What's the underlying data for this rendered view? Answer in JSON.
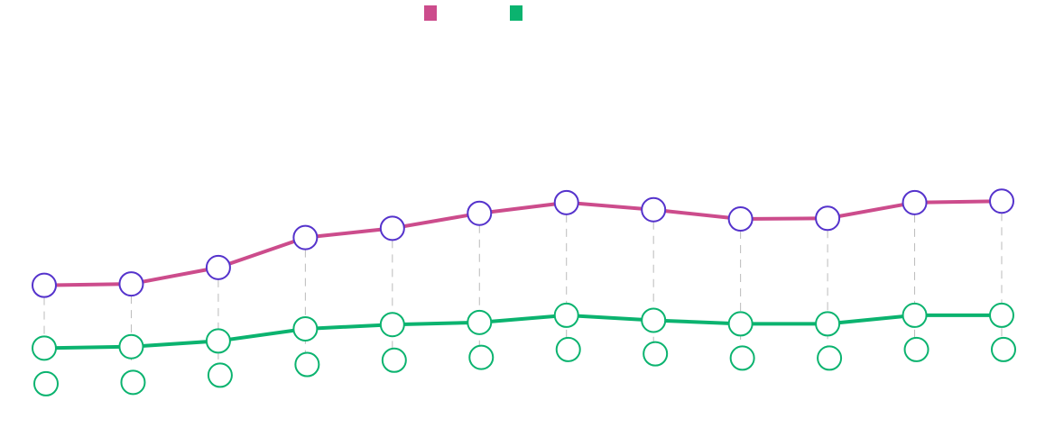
{
  "chart_data": {
    "type": "line",
    "title": "",
    "xlabel": "",
    "ylabel": "",
    "categories": [
      "",
      "",
      "",
      "",
      "",
      "",
      "",
      "",
      "",
      "",
      "",
      ""
    ],
    "ylim": [
      0,
      60
    ],
    "grid": "vertical-dashed",
    "legend_position": "top-center",
    "series": [
      {
        "color": "#cc4c8c",
        "marker_stroke": "#5533cc",
        "values": [
          20.0,
          20.2,
          22.5,
          26.7,
          28.0,
          30.1,
          31.6,
          30.6,
          29.3,
          29.4,
          31.6,
          31.8
        ]
      },
      {
        "color": "#0bb36f",
        "marker_stroke": "#0bb36f",
        "values": [
          11.2,
          11.4,
          12.2,
          13.9,
          14.5,
          14.8,
          15.8,
          15.1,
          14.6,
          14.6,
          15.8,
          15.8
        ]
      }
    ],
    "extra_markers": {
      "color": "#0bb36f",
      "values": [
        6.2,
        6.4,
        7.4,
        8.9,
        9.5,
        9.9,
        11.0,
        10.4,
        9.8,
        9.8,
        11.0,
        11.0
      ]
    }
  }
}
